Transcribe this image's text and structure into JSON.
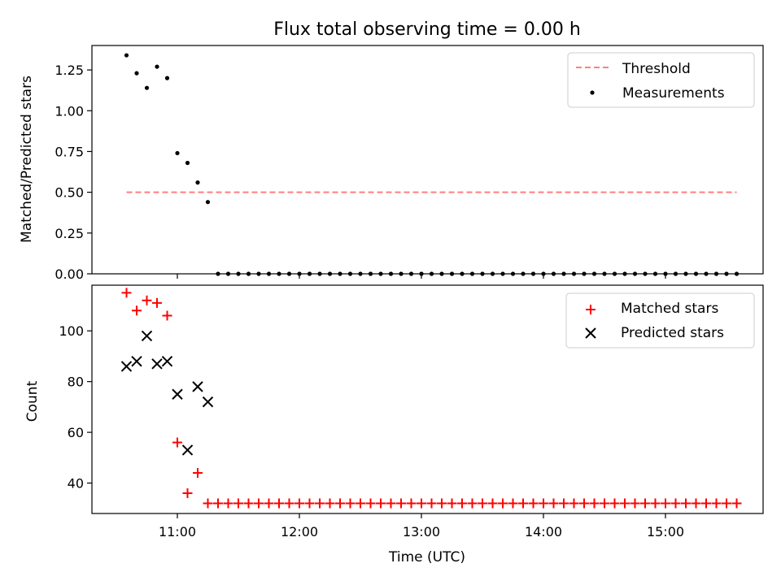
{
  "chart_data": [
    {
      "type": "scatter",
      "title": "Flux total observing time = 0.00 h",
      "xlabel": "",
      "ylabel": "Matched/Predicted stars",
      "xlim": [
        "10:18",
        "15:48"
      ],
      "ylim": [
        0,
        1.4
      ],
      "yticks": [
        "0.00",
        "0.25",
        "0.50",
        "0.75",
        "1.00",
        "1.25"
      ],
      "legend_position": "top-right",
      "threshold": {
        "name": "Threshold",
        "x": [
          "10:35",
          "15:35"
        ],
        "y": [
          0.5,
          0.5
        ],
        "color": "#ff7f7f",
        "style": "dashed"
      },
      "series": [
        {
          "name": "Measurements",
          "marker": "dot",
          "color": "#000000",
          "x": [
            "10:35",
            "10:40",
            "10:45",
            "10:50",
            "10:55",
            "11:00",
            "11:05",
            "11:10",
            "11:15",
            "11:20",
            "11:25",
            "11:30",
            "11:35",
            "11:40",
            "11:45",
            "11:50",
            "11:55",
            "12:00",
            "12:05",
            "12:10",
            "12:15",
            "12:20",
            "12:25",
            "12:30",
            "12:35",
            "12:40",
            "12:45",
            "12:50",
            "12:55",
            "13:00",
            "13:05",
            "13:10",
            "13:15",
            "13:20",
            "13:25",
            "13:30",
            "13:35",
            "13:40",
            "13:45",
            "13:50",
            "13:55",
            "14:00",
            "14:05",
            "14:10",
            "14:15",
            "14:20",
            "14:25",
            "14:30",
            "14:35",
            "14:40",
            "14:45",
            "14:50",
            "14:55",
            "15:00",
            "15:05",
            "15:10",
            "15:15",
            "15:20",
            "15:25",
            "15:30",
            "15:35"
          ],
          "y": [
            1.34,
            1.23,
            1.14,
            1.27,
            1.2,
            0.74,
            0.68,
            0.56,
            0.44,
            0,
            0,
            0,
            0,
            0,
            0,
            0,
            0,
            0,
            0,
            0,
            0,
            0,
            0,
            0,
            0,
            0,
            0,
            0,
            0,
            0,
            0,
            0,
            0,
            0,
            0,
            0,
            0,
            0,
            0,
            0,
            0,
            0,
            0,
            0,
            0,
            0,
            0,
            0,
            0,
            0,
            0,
            0,
            0,
            0,
            0,
            0,
            0,
            0,
            0,
            0,
            0
          ]
        }
      ]
    },
    {
      "type": "scatter",
      "title": "",
      "xlabel": "Time (UTC)",
      "ylabel": "Count",
      "xlim": [
        "10:18",
        "15:48"
      ],
      "ylim": [
        28,
        118
      ],
      "yticks": [
        "40",
        "60",
        "80",
        "100"
      ],
      "xticks": [
        "11:00",
        "12:00",
        "13:00",
        "14:00",
        "15:00"
      ],
      "legend_position": "top-right",
      "series": [
        {
          "name": "Matched stars",
          "marker": "plus",
          "color": "#ff0000",
          "x": [
            "10:35",
            "10:40",
            "10:45",
            "10:50",
            "10:55",
            "11:00",
            "11:05",
            "11:10",
            "11:15",
            "11:20",
            "11:25",
            "11:30",
            "11:35",
            "11:40",
            "11:45",
            "11:50",
            "11:55",
            "12:00",
            "12:05",
            "12:10",
            "12:15",
            "12:20",
            "12:25",
            "12:30",
            "12:35",
            "12:40",
            "12:45",
            "12:50",
            "12:55",
            "13:00",
            "13:05",
            "13:10",
            "13:15",
            "13:20",
            "13:25",
            "13:30",
            "13:35",
            "13:40",
            "13:45",
            "13:50",
            "13:55",
            "14:00",
            "14:05",
            "14:10",
            "14:15",
            "14:20",
            "14:25",
            "14:30",
            "14:35",
            "14:40",
            "14:45",
            "14:50",
            "14:55",
            "15:00",
            "15:05",
            "15:10",
            "15:15",
            "15:20",
            "15:25",
            "15:30",
            "15:35"
          ],
          "y": [
            115,
            108,
            112,
            111,
            106,
            56,
            36,
            44,
            32,
            32,
            32,
            32,
            32,
            32,
            32,
            32,
            32,
            32,
            32,
            32,
            32,
            32,
            32,
            32,
            32,
            32,
            32,
            32,
            32,
            32,
            32,
            32,
            32,
            32,
            32,
            32,
            32,
            32,
            32,
            32,
            32,
            32,
            32,
            32,
            32,
            32,
            32,
            32,
            32,
            32,
            32,
            32,
            32,
            32,
            32,
            32,
            32,
            32,
            32,
            32,
            32
          ]
        },
        {
          "name": "Predicted stars",
          "marker": "x",
          "color": "#000000",
          "x": [
            "10:35",
            "10:40",
            "10:45",
            "10:50",
            "10:55",
            "11:00",
            "11:05",
            "11:10",
            "11:15"
          ],
          "y": [
            86,
            88,
            98,
            87,
            88,
            75,
            53,
            78,
            72
          ]
        }
      ]
    }
  ]
}
